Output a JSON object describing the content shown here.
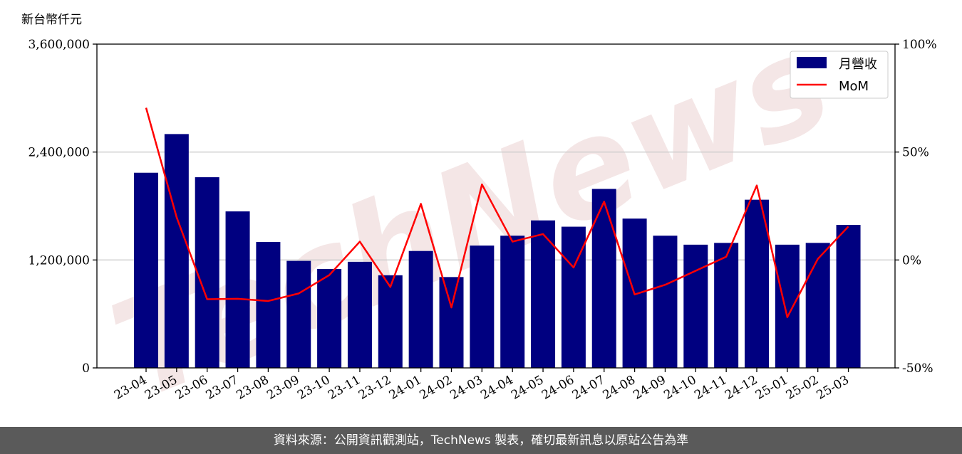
{
  "footer": {
    "text": "資料來源：公開資訊觀測站，TechNews 製表，確切最新訊息以原站公告為準"
  },
  "watermark": {
    "text": "TechNews"
  },
  "chart_data": {
    "type": "bar",
    "unit_label": "新台幣仟元",
    "categories": [
      "23-04",
      "23-05",
      "23-06",
      "23-07",
      "23-08",
      "23-09",
      "23-10",
      "23-11",
      "23-12",
      "24-01",
      "24-02",
      "24-03",
      "24-04",
      "24-05",
      "24-06",
      "24-07",
      "24-08",
      "24-09",
      "24-10",
      "24-11",
      "24-12",
      "25-01",
      "25-02",
      "25-03"
    ],
    "series": [
      {
        "name": "月營收",
        "type": "bar",
        "axis": "left",
        "color": "#000080",
        "values": [
          2170000,
          2600000,
          2120000,
          1740000,
          1400000,
          1190000,
          1100000,
          1180000,
          1030000,
          1300000,
          1010000,
          1360000,
          1470000,
          1640000,
          1570000,
          1990000,
          1660000,
          1470000,
          1370000,
          1390000,
          1870000,
          1370000,
          1390000,
          1590000
        ]
      },
      {
        "name": "MoM",
        "type": "line",
        "axis": "right",
        "color": "#ff0000",
        "values": [
          70.5,
          19.8,
          -18.2,
          -18.0,
          -19.0,
          -15.5,
          -7.0,
          8.5,
          -12.5,
          26.0,
          -22.0,
          35.0,
          8.5,
          12.0,
          -3.5,
          27.0,
          -16.0,
          -11.5,
          -5.0,
          1.5,
          34.5,
          -26.5,
          0.5,
          15.5
        ]
      }
    ],
    "y_left": {
      "ylim": [
        0,
        3600000
      ],
      "ticks": [
        0,
        1200000,
        2400000,
        3600000
      ],
      "tick_labels": [
        "0",
        "1,200,000",
        "2,400,000",
        "3,600,000"
      ]
    },
    "y_right": {
      "ylim": [
        -50,
        100
      ],
      "ticks": [
        -50,
        0,
        50,
        100
      ],
      "tick_labels": [
        "-50%",
        "0%",
        "50%",
        "100%"
      ]
    },
    "grid": true,
    "legend": {
      "position": "top-right",
      "entries": [
        "月營收",
        "MoM"
      ]
    }
  }
}
